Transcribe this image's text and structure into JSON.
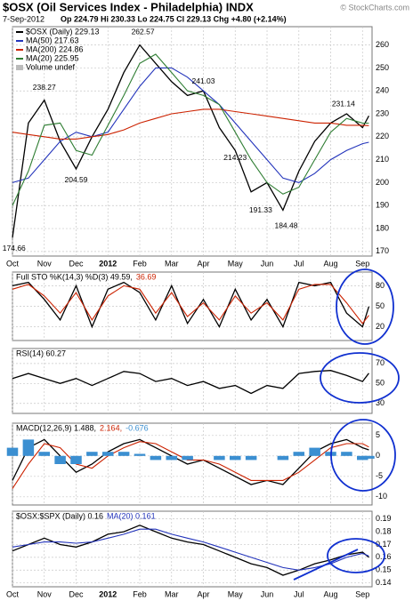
{
  "header": {
    "title": "$OSX (Oil Services Index - Philadelphia) INDX",
    "date": "7-Sep-2012",
    "quote": "Op 224.79 Hi 230.33 Lo 224.75 Cl 229.13 Chg +4.80 (+2.14%)",
    "credit": "© StockCharts.com"
  },
  "chart_data": [
    {
      "type": "line",
      "show_xlabels": true,
      "grid": true,
      "xlim": [
        0,
        11.3
      ],
      "xticks": [
        {
          "value": 0,
          "label": "Oct"
        },
        {
          "value": 1,
          "label": "Nov"
        },
        {
          "value": 2,
          "label": "Dec"
        },
        {
          "value": 3,
          "label": "2012"
        },
        {
          "value": 4,
          "label": "Feb"
        },
        {
          "value": 5,
          "label": "Mar"
        },
        {
          "value": 6,
          "label": "Apr"
        },
        {
          "value": 7,
          "label": "May"
        },
        {
          "value": 8,
          "label": "Jun"
        },
        {
          "value": 9,
          "label": "Jul"
        },
        {
          "value": 10,
          "label": "Aug"
        },
        {
          "value": 11,
          "label": "Sep"
        }
      ],
      "ylim": [
        168,
        268
      ],
      "yticks": [
        170,
        180,
        190,
        200,
        210,
        220,
        230,
        240,
        250,
        260
      ],
      "x": [
        0,
        0.5,
        1,
        1.5,
        2,
        2.5,
        3,
        3.5,
        4,
        4.5,
        5,
        5.5,
        6,
        6.5,
        7,
        7.5,
        8,
        8.5,
        9,
        9.5,
        10,
        10.5,
        11,
        11.2
      ],
      "series": [
        {
          "name": "$OSX (Daily) 229.13",
          "color": "#000000",
          "values": [
            176,
            226,
            236,
            218,
            206,
            220,
            232,
            248,
            260,
            252,
            244,
            238,
            240,
            224,
            214,
            196,
            200,
            188,
            205,
            218,
            226,
            230,
            224,
            229.13
          ]
        },
        {
          "name": "MA(50) 217.63",
          "color": "#2233bb",
          "values": [
            200,
            202,
            210,
            218,
            222,
            220,
            222,
            232,
            242,
            250,
            250,
            246,
            240,
            234,
            226,
            218,
            210,
            202,
            200,
            204,
            210,
            214,
            217,
            217.63
          ]
        },
        {
          "name": "MA(200) 224.86",
          "color": "#cc2200",
          "values": [
            222,
            221,
            220,
            219,
            219,
            220,
            221,
            223,
            226,
            228,
            230,
            231,
            232,
            232,
            231,
            230,
            229,
            228,
            227,
            226,
            226,
            225,
            225,
            224.86
          ]
        },
        {
          "name": "MA(20) 225.95",
          "color": "#2e7d32",
          "values": [
            190,
            205,
            225,
            226,
            214,
            212,
            225,
            238,
            252,
            256,
            248,
            240,
            238,
            234,
            222,
            210,
            200,
            195,
            198,
            210,
            222,
            228,
            226,
            225.95
          ]
        }
      ],
      "volume_label": "Volume undef",
      "annotations": [
        {
          "x": 0.05,
          "value": 174.66,
          "pos": "below"
        },
        {
          "x": 1.0,
          "value": 238.27,
          "pos": "above"
        },
        {
          "x": 2.0,
          "value": 204.59,
          "pos": "below"
        },
        {
          "x": 4.1,
          "value": 262.57,
          "pos": "above"
        },
        {
          "x": 6.0,
          "value": 241.03,
          "pos": "above"
        },
        {
          "x": 7.0,
          "value": 214.23,
          "pos": "below"
        },
        {
          "x": 7.8,
          "value": 191.33,
          "pos": "below"
        },
        {
          "x": 8.6,
          "value": 184.48,
          "pos": "below"
        },
        {
          "x": 10.4,
          "value": 231.14,
          "pos": "above"
        }
      ]
    },
    {
      "type": "line",
      "show_xlabels": false,
      "grid": true,
      "xlim": [
        0,
        11.3
      ],
      "xticks": [
        0,
        1,
        2,
        3,
        4,
        5,
        6,
        7,
        8,
        9,
        10,
        11
      ],
      "ylim": [
        0,
        100
      ],
      "yticks": [
        20,
        50,
        80
      ],
      "x": [
        0,
        0.5,
        1,
        1.5,
        2,
        2.5,
        3,
        3.5,
        4,
        4.5,
        5,
        5.5,
        6,
        6.5,
        7,
        7.5,
        8,
        8.5,
        9,
        9.5,
        10,
        10.5,
        11,
        11.2
      ],
      "series": [
        {
          "name": "Full STO %K(14,3) %D(3) 49.59,",
          "color": "#000000",
          "values": [
            80,
            85,
            60,
            30,
            80,
            20,
            75,
            85,
            70,
            30,
            80,
            25,
            60,
            20,
            75,
            30,
            60,
            20,
            85,
            80,
            85,
            40,
            20,
            49.59
          ]
        },
        {
          "name": "36.69",
          "color": "#cc2200",
          "values": [
            75,
            82,
            65,
            40,
            70,
            30,
            65,
            80,
            75,
            40,
            70,
            35,
            55,
            30,
            65,
            40,
            55,
            30,
            75,
            82,
            82,
            55,
            25,
            36.69
          ]
        }
      ]
    },
    {
      "type": "line",
      "show_xlabels": false,
      "grid": true,
      "xlim": [
        0,
        11.3
      ],
      "xticks": [
        0,
        1,
        2,
        3,
        4,
        5,
        6,
        7,
        8,
        9,
        10,
        11
      ],
      "ylim": [
        20,
        85
      ],
      "yticks": [
        30,
        50,
        70
      ],
      "x": [
        0,
        0.5,
        1,
        1.5,
        2,
        2.5,
        3,
        3.5,
        4,
        4.5,
        5,
        5.5,
        6,
        6.5,
        7,
        7.5,
        8,
        8.5,
        9,
        9.5,
        10,
        10.5,
        11,
        11.2
      ],
      "series": [
        {
          "name": "RSI(14) 60.27",
          "color": "#000000",
          "values": [
            55,
            60,
            55,
            50,
            55,
            48,
            55,
            62,
            60,
            52,
            55,
            48,
            52,
            45,
            48,
            40,
            48,
            45,
            60,
            62,
            63,
            58,
            52,
            60.27
          ]
        }
      ]
    },
    {
      "type": "line",
      "show_xlabels": false,
      "grid": true,
      "xlim": [
        0,
        11.3
      ],
      "xticks": [
        0,
        1,
        2,
        3,
        4,
        5,
        6,
        7,
        8,
        9,
        10,
        11
      ],
      "ylim": [
        -12,
        8
      ],
      "yticks": [
        -10,
        -5,
        0,
        5
      ],
      "x": [
        0,
        0.5,
        1,
        1.5,
        2,
        2.5,
        3,
        3.5,
        4,
        4.5,
        5,
        5.5,
        6,
        6.5,
        7,
        7.5,
        8,
        8.5,
        9,
        9.5,
        10,
        10.5,
        11,
        11.2
      ],
      "series": [
        {
          "name": "MACD(12,26,9) 1.488,",
          "color": "#000000",
          "values": [
            -6,
            2,
            4,
            0,
            -4,
            -2,
            1,
            3,
            4,
            2,
            0,
            -2,
            -1,
            -3,
            -5,
            -7,
            -6,
            -7,
            -3,
            1,
            3,
            4,
            2,
            1.488
          ]
        },
        {
          "name": "2.164,",
          "color": "#cc2200",
          "values": [
            -8,
            -2,
            3,
            2,
            -2,
            -3,
            0,
            2,
            3.5,
            3,
            1,
            -1,
            -1,
            -2,
            -4,
            -6,
            -6,
            -6,
            -4,
            -1,
            2,
            3,
            3,
            2.164
          ]
        },
        {
          "name": "-0.676",
          "color": "#3b8fd1",
          "style": "bar",
          "values": [
            2,
            4,
            1,
            -2,
            -2,
            1,
            1,
            1,
            0.5,
            -1,
            -1,
            -1,
            0,
            -1,
            -1,
            -1,
            0,
            -1,
            1,
            2,
            1,
            1,
            -1,
            -0.676
          ]
        }
      ]
    },
    {
      "type": "line",
      "show_xlabels": true,
      "grid": true,
      "xlim": [
        0,
        11.3
      ],
      "xticks": [
        {
          "value": 0,
          "label": "Oct"
        },
        {
          "value": 1,
          "label": "Nov"
        },
        {
          "value": 2,
          "label": "Dec"
        },
        {
          "value": 3,
          "label": "2012"
        },
        {
          "value": 4,
          "label": "Feb"
        },
        {
          "value": 5,
          "label": "Mar"
        },
        {
          "value": 6,
          "label": "Apr"
        },
        {
          "value": 7,
          "label": "May"
        },
        {
          "value": 8,
          "label": "Jun"
        },
        {
          "value": 9,
          "label": "Jul"
        },
        {
          "value": 10,
          "label": "Aug"
        },
        {
          "value": 11,
          "label": "Sep"
        }
      ],
      "ylim": [
        0.137,
        0.196
      ],
      "yticks": [
        0.14,
        0.15,
        0.16,
        0.17,
        0.18,
        0.19
      ],
      "x": [
        0,
        0.5,
        1,
        1.5,
        2,
        2.5,
        3,
        3.5,
        4,
        4.5,
        5,
        5.5,
        6,
        6.5,
        7,
        7.5,
        8,
        8.5,
        9,
        9.5,
        10,
        10.5,
        11,
        11.2
      ],
      "series": [
        {
          "name": "$OSX:$SPX (Daily) 0.16",
          "color": "#000000",
          "values": [
            0.165,
            0.17,
            0.175,
            0.17,
            0.168,
            0.172,
            0.178,
            0.18,
            0.185,
            0.18,
            0.175,
            0.172,
            0.17,
            0.165,
            0.16,
            0.155,
            0.152,
            0.146,
            0.15,
            0.155,
            0.158,
            0.162,
            0.164,
            0.16
          ]
        },
        {
          "name": "MA(20) 0.161",
          "color": "#2233bb",
          "values": [
            0.168,
            0.17,
            0.172,
            0.172,
            0.171,
            0.172,
            0.175,
            0.178,
            0.182,
            0.182,
            0.178,
            0.175,
            0.172,
            0.168,
            0.164,
            0.16,
            0.156,
            0.152,
            0.15,
            0.152,
            0.155,
            0.16,
            0.163,
            0.161
          ]
        }
      ]
    }
  ]
}
